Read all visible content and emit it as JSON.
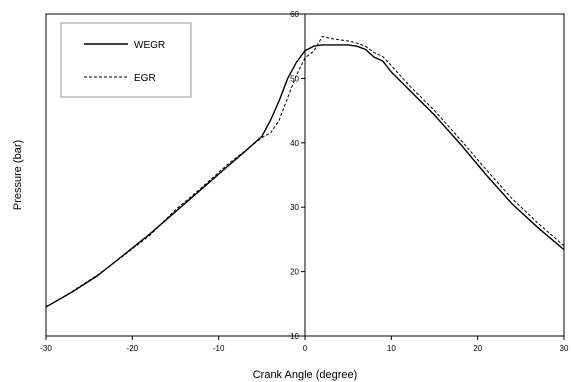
{
  "chart_data": {
    "type": "line",
    "title": "",
    "xlabel": "Crank Angle (degree)",
    "ylabel": "Pressure (bar)",
    "xlim": [
      -30,
      30
    ],
    "ylim": [
      10,
      60
    ],
    "x_ticks": [
      -30,
      -20,
      -10,
      0,
      10,
      20,
      30
    ],
    "y_ticks": [
      10,
      20,
      30,
      40,
      50,
      60
    ],
    "grid": false,
    "legend_position": "top-left",
    "series": [
      {
        "name": "WEGR",
        "style": "solid",
        "color": "#000000",
        "x": [
          -30,
          -27,
          -24,
          -21,
          -18,
          -15,
          -12,
          -9,
          -7,
          -5,
          -4,
          -3,
          -2,
          -1,
          0,
          1,
          2,
          3,
          4,
          5,
          6,
          7,
          8,
          9,
          10,
          12,
          15,
          18,
          21,
          24,
          27,
          30
        ],
        "y": [
          14.5,
          16.8,
          19.4,
          22.6,
          25.8,
          29.3,
          32.8,
          36.3,
          38.6,
          41.0,
          43.5,
          46.5,
          50.0,
          52.5,
          54.3,
          55.0,
          55.2,
          55.2,
          55.2,
          55.2,
          55.0,
          54.5,
          53.3,
          52.7,
          51.0,
          48.3,
          44.3,
          39.8,
          35.0,
          30.5,
          26.8,
          23.4
        ]
      },
      {
        "name": "EGR",
        "style": "dashed",
        "color": "#000000",
        "x": [
          -30,
          -27,
          -24,
          -21,
          -18,
          -15,
          -12,
          -9,
          -7,
          -5,
          -4,
          -3,
          -2,
          -1,
          0,
          1,
          2,
          3,
          4,
          5,
          6,
          7,
          8,
          9,
          10,
          12,
          15,
          18,
          21,
          24,
          27,
          30
        ],
        "y": [
          14.5,
          16.9,
          19.5,
          22.5,
          25.6,
          29.6,
          33.0,
          36.6,
          38.7,
          40.8,
          41.5,
          43.5,
          47.0,
          50.5,
          53.2,
          54.2,
          56.5,
          56.2,
          56.0,
          55.8,
          55.5,
          55.0,
          54.0,
          53.4,
          52.0,
          49.0,
          45.0,
          40.5,
          35.8,
          31.3,
          27.5,
          24.0
        ]
      }
    ]
  }
}
